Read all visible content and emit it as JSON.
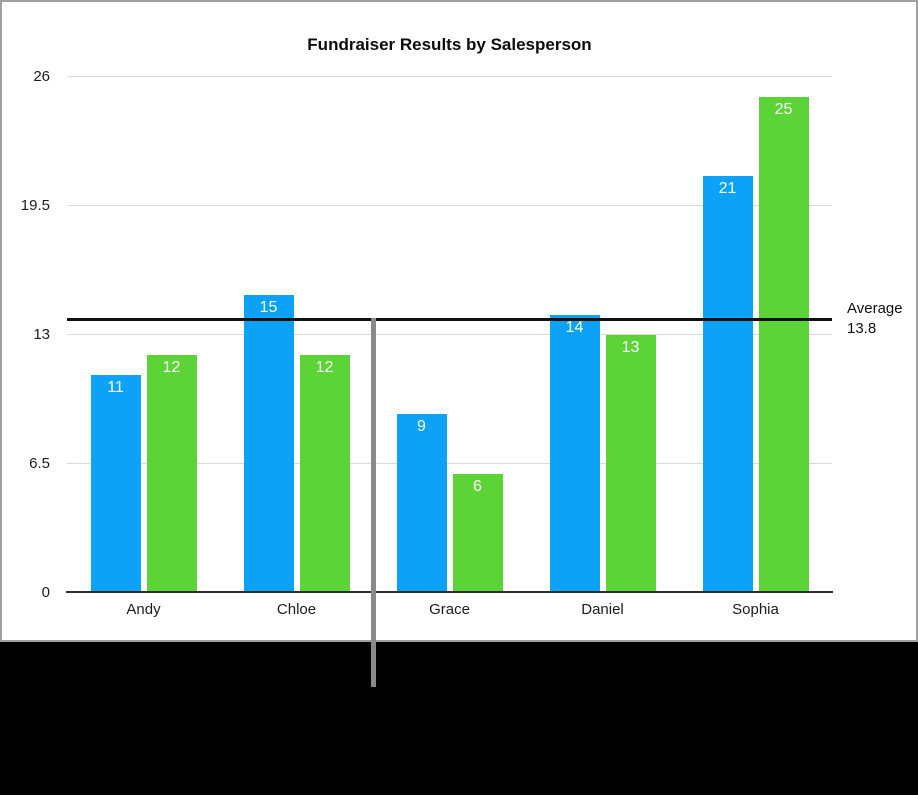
{
  "chart_data": {
    "type": "bar",
    "title": "Fundraiser Results by Salesperson",
    "categories": [
      "Andy",
      "Chloe",
      "Grace",
      "Daniel",
      "Sophia"
    ],
    "series": [
      {
        "name": "blue-series",
        "color": "#0ba2f7",
        "values": [
          11,
          15,
          9,
          14,
          21
        ]
      },
      {
        "name": "green-series",
        "color": "#5cd437",
        "values": [
          12,
          12,
          6,
          13,
          25
        ]
      }
    ],
    "y_ticks": [
      0,
      6.5,
      13,
      19.5,
      26
    ],
    "ylim": [
      0,
      26
    ],
    "grid": true,
    "legend": "none",
    "value_labels": "inside-top",
    "average_line": {
      "label": "Average",
      "display_value": "13.8",
      "value": 13.8,
      "color": "#111111"
    }
  },
  "ui": {
    "background_color": "#000000",
    "card_border_color": "#a0a0a0",
    "gridline_color": "#dadada",
    "axis_line_color": "#2e2e2e",
    "pointer_line_color": "#8a8a8a",
    "value_label_color": "#ffffff",
    "text_color": "#1c1c1c"
  }
}
